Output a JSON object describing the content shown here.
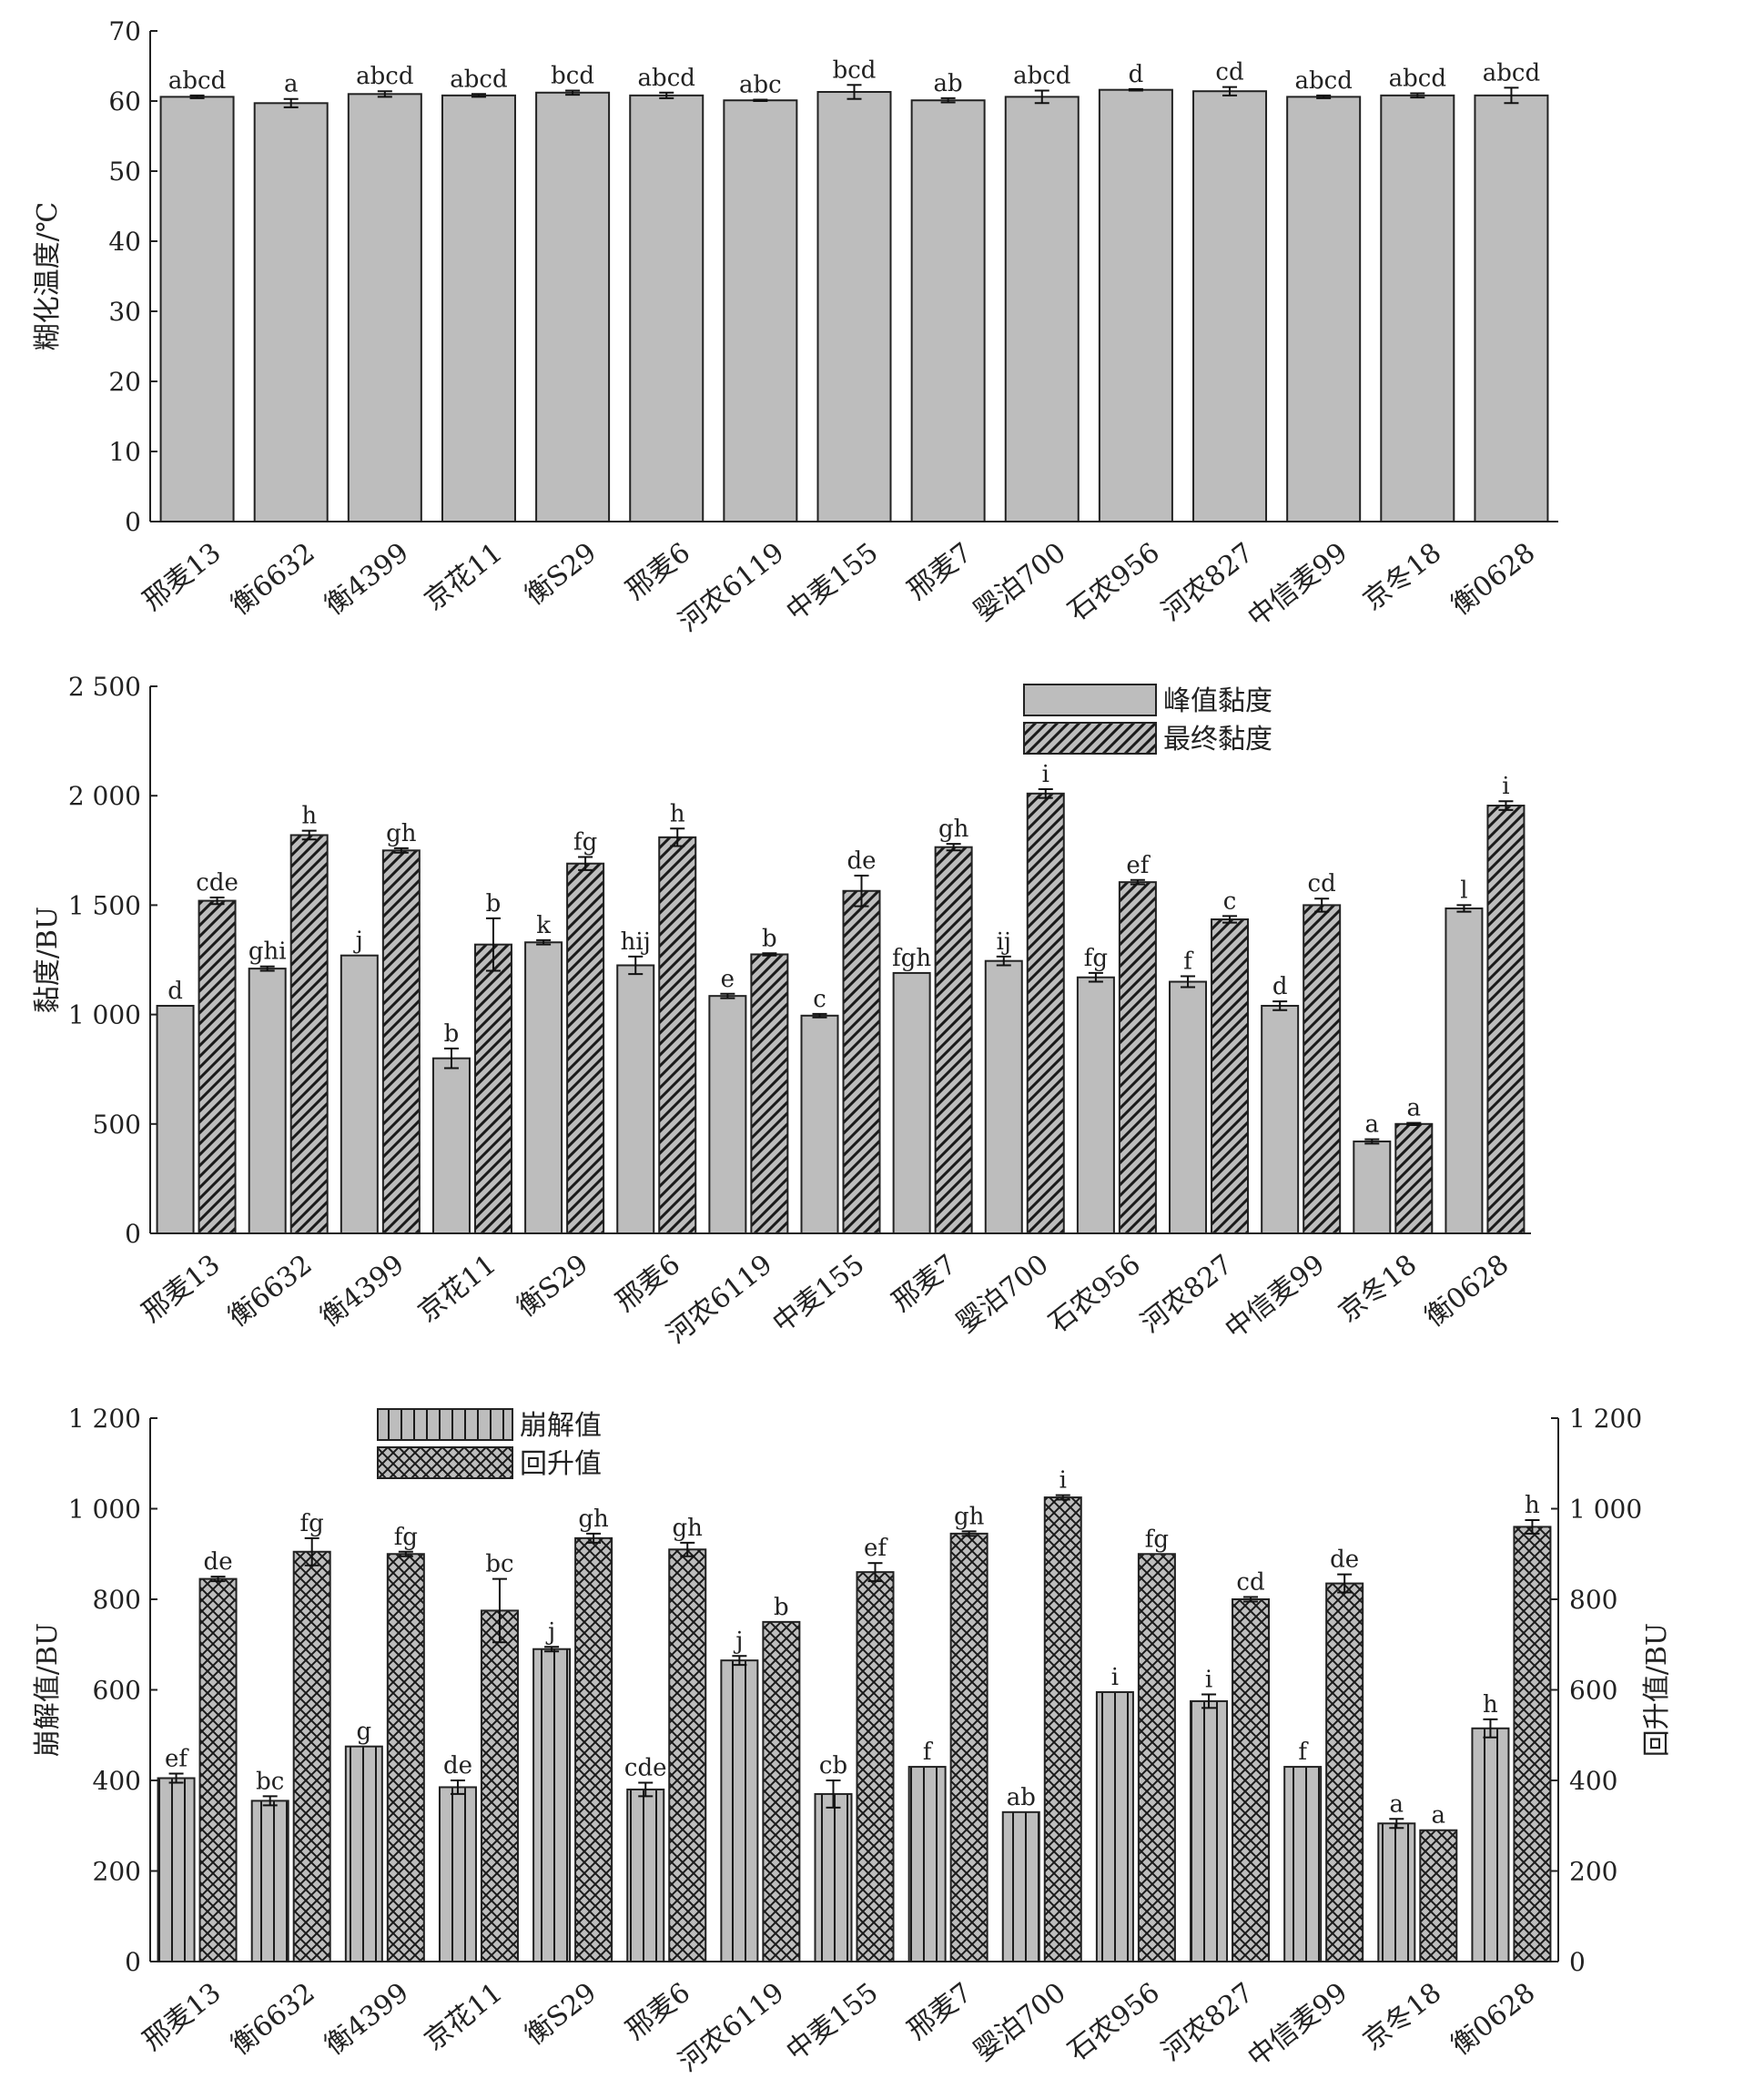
{
  "chart_data": [
    {
      "type": "bar",
      "categories": [
        "邢麦13",
        "衡6632",
        "衡4399",
        "京花11",
        "衡S29",
        "邢麦6",
        "河农6119",
        "中麦155",
        "邢麦7",
        "婴泊700",
        "石农956",
        "河农827",
        "中信麦99",
        "京冬18",
        "衡0628"
      ],
      "ylabel": "糊化温度/℃",
      "ylim": [
        0,
        70
      ],
      "yticks": [
        {
          "v": 0,
          "label": "0"
        },
        {
          "v": 10,
          "label": "10"
        },
        {
          "v": 20,
          "label": "20"
        },
        {
          "v": 30,
          "label": "30"
        },
        {
          "v": 40,
          "label": "40"
        },
        {
          "v": 50,
          "label": "50"
        },
        {
          "v": 60,
          "label": "60"
        },
        {
          "v": 70,
          "label": "70"
        }
      ],
      "series": [
        {
          "pattern": "solid",
          "values": [
            60.6,
            59.7,
            61.0,
            60.8,
            61.2,
            60.8,
            60.1,
            61.3,
            60.1,
            60.6,
            61.6,
            61.4,
            60.6,
            60.8,
            60.8
          ],
          "errors": [
            0.2,
            0.6,
            0.4,
            0.2,
            0.3,
            0.4,
            0.1,
            1.0,
            0.3,
            0.9,
            0.1,
            0.6,
            0.2,
            0.3,
            1.1
          ],
          "labels": [
            "abcd",
            "a",
            "abcd",
            "abcd",
            "bcd",
            "abcd",
            "abc",
            "bcd",
            "ab",
            "abcd",
            "d",
            "cd",
            "abcd",
            "abcd",
            "abcd"
          ]
        }
      ]
    },
    {
      "type": "bar",
      "categories": [
        "邢麦13",
        "衡6632",
        "衡4399",
        "京花11",
        "衡S29",
        "邢麦6",
        "河农6119",
        "中麦155",
        "邢麦7",
        "婴泊700",
        "石农956",
        "河农827",
        "中信麦99",
        "京冬18",
        "衡0628"
      ],
      "ylabel": "黏度/BU",
      "ylim": [
        0,
        2500
      ],
      "yticks": [
        {
          "v": 0,
          "label": "0"
        },
        {
          "v": 500,
          "label": "500"
        },
        {
          "v": 1000,
          "label": "1 000"
        },
        {
          "v": 1500,
          "label": "1 500"
        },
        {
          "v": 2000,
          "label": "2 000"
        },
        {
          "v": 2500,
          "label": "2 500"
        }
      ],
      "legend": "top-right",
      "series": [
        {
          "name": "峰值黏度",
          "pattern": "solid",
          "values": [
            1040,
            1210,
            1270,
            800,
            1330,
            1225,
            1085,
            995,
            1190,
            1245,
            1170,
            1150,
            1040,
            420,
            1485
          ],
          "errors": [
            0,
            10,
            0,
            45,
            10,
            40,
            10,
            8,
            0,
            20,
            20,
            25,
            20,
            10,
            15
          ],
          "labels": [
            "d",
            "ghi",
            "j",
            "b",
            "k",
            "hij",
            "e",
            "c",
            "fgh",
            "ij",
            "fg",
            "f",
            "d",
            "a",
            "l"
          ]
        },
        {
          "name": "最终黏度",
          "pattern": "hatch",
          "values": [
            1520,
            1820,
            1750,
            1320,
            1690,
            1810,
            1275,
            1565,
            1765,
            2010,
            1605,
            1435,
            1500,
            500,
            1955
          ],
          "errors": [
            15,
            20,
            10,
            120,
            30,
            40,
            5,
            70,
            15,
            20,
            10,
            15,
            30,
            5,
            20
          ],
          "labels": [
            "cde",
            "h",
            "gh",
            "b",
            "fg",
            "h",
            "b",
            "de",
            "gh",
            "i",
            "ef",
            "c",
            "cd",
            "a",
            "i"
          ]
        }
      ]
    },
    {
      "type": "bar",
      "categories": [
        "邢麦13",
        "衡6632",
        "衡4399",
        "京花11",
        "衡S29",
        "邢麦6",
        "河农6119",
        "中麦155",
        "邢麦7",
        "婴泊700",
        "石农956",
        "河农827",
        "中信麦99",
        "京冬18",
        "衡0628"
      ],
      "ylabel": "崩解值/BU",
      "y2label": "回升值/BU",
      "ylim": [
        0,
        1200
      ],
      "yticks": [
        {
          "v": 0,
          "label": "0"
        },
        {
          "v": 200,
          "label": "200"
        },
        {
          "v": 400,
          "label": "400"
        },
        {
          "v": 600,
          "label": "600"
        },
        {
          "v": 800,
          "label": "800"
        },
        {
          "v": 1000,
          "label": "1 000"
        },
        {
          "v": 1200,
          "label": "1 200"
        }
      ],
      "legend": "top-left",
      "series": [
        {
          "name": "崩解值",
          "pattern": "vlines",
          "values": [
            405,
            355,
            475,
            385,
            690,
            380,
            665,
            370,
            430,
            330,
            595,
            575,
            430,
            305,
            515
          ],
          "errors": [
            10,
            10,
            0,
            15,
            5,
            15,
            10,
            30,
            0,
            0,
            0,
            15,
            0,
            10,
            20
          ],
          "labels": [
            "ef",
            "bc",
            "g",
            "de",
            "j",
            "cde",
            "j",
            "cb",
            "f",
            "ab",
            "i",
            "i",
            "f",
            "a",
            "h"
          ]
        },
        {
          "name": "回升值",
          "pattern": "cross",
          "values": [
            845,
            905,
            900,
            775,
            935,
            910,
            750,
            860,
            945,
            1025,
            900,
            800,
            835,
            290,
            960
          ],
          "errors": [
            5,
            30,
            5,
            70,
            10,
            15,
            0,
            20,
            5,
            5,
            0,
            5,
            20,
            0,
            15
          ],
          "labels": [
            "de",
            "fg",
            "fg",
            "bc",
            "gh",
            "gh",
            "b",
            "ef",
            "gh",
            "i",
            "fg",
            "cd",
            "de",
            "a",
            "h"
          ]
        }
      ]
    }
  ]
}
